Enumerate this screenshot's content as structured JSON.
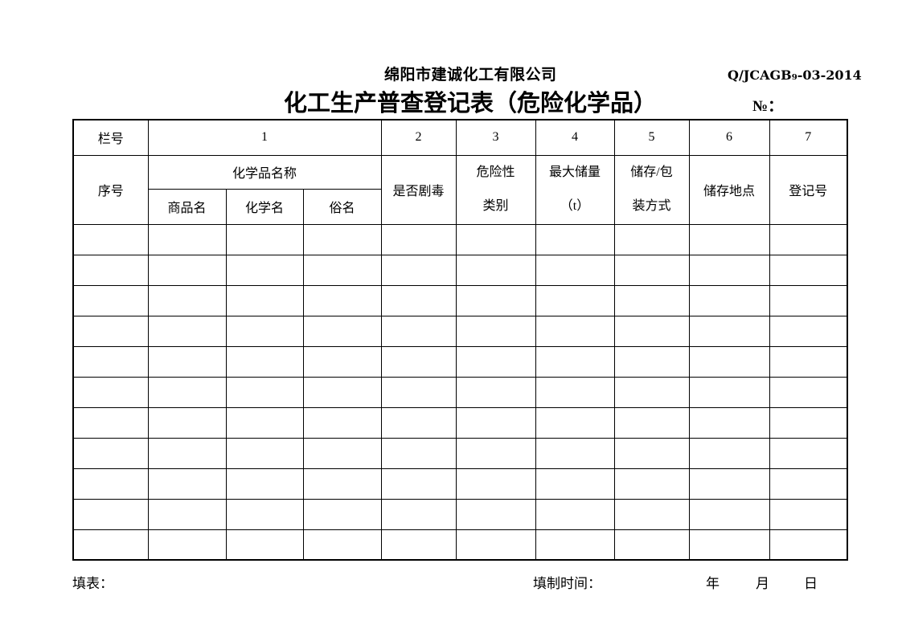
{
  "header": {
    "company": "绵阳市建诚化工有限公司",
    "doc_code": "Q/JCAGB₉-03-2014",
    "title": "化工生产普查登记表（危险化学品）",
    "numero": "№："
  },
  "table": {
    "lane_label": "栏号",
    "col_numbers": [
      "1",
      "2",
      "3",
      "4",
      "5",
      "6",
      "7"
    ],
    "headers": {
      "seq": "序号",
      "chem_name_group": "化学品名称",
      "trade_name": "商品名",
      "chemical_name": "化学名",
      "common_name": "俗名",
      "is_toxic": "是否剧毒",
      "hazard_class": "危险性\n类别",
      "max_storage": "最大储量\n（t）",
      "storage_package": "储存/包\n装方式",
      "storage_location": "储存地点",
      "registration_no": "登记号"
    },
    "empty_rows": 11,
    "columns": 10
  },
  "footer": {
    "fill_label": "填表：",
    "fill_time_label": "填制时间：",
    "year": "年",
    "month": "月",
    "day": "日"
  },
  "colors": {
    "ink": "#000000",
    "paper": "#ffffff"
  }
}
